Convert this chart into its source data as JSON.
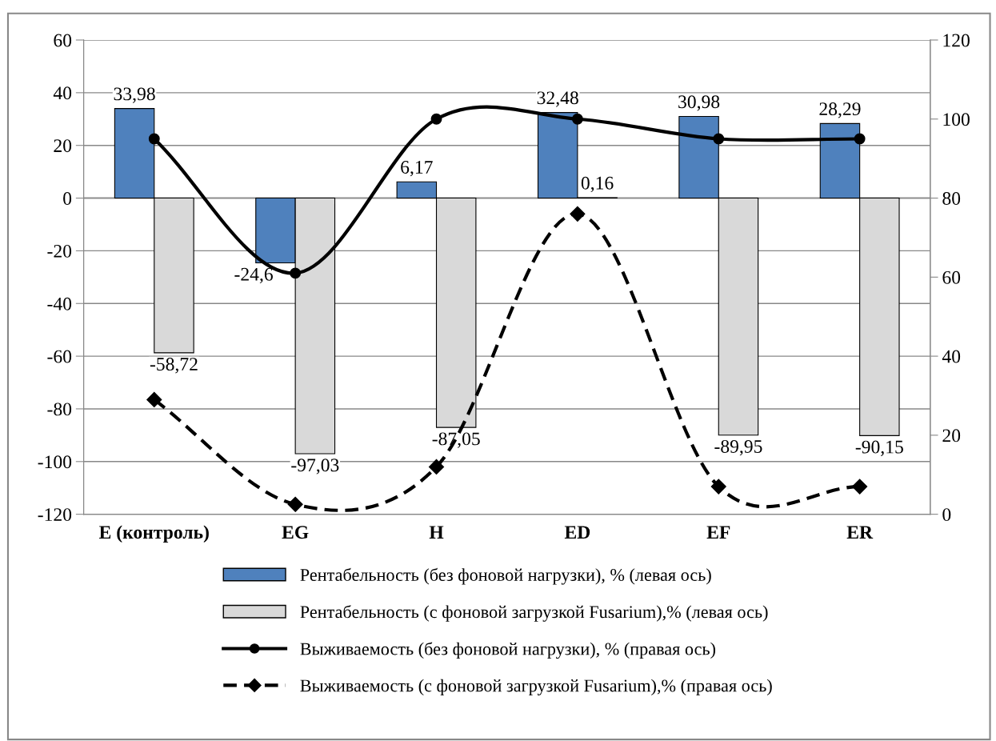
{
  "chart_data": {
    "type": "bar",
    "categories": [
      "E (контроль)",
      "EG",
      "H",
      "ED",
      "EF",
      "ER"
    ],
    "series": [
      {
        "name": "Рентабельность (без фоновой нагрузки), % (левая ось)",
        "color": "#4f81bd",
        "values": [
          33.98,
          -24.6,
          6.17,
          32.48,
          30.98,
          28.29
        ],
        "value_labels": [
          "33,98",
          "-24,6",
          "6,17",
          "32,48",
          "30,98",
          "28,29"
        ]
      },
      {
        "name": "Рентабельность (с фоновой загрузкой Fusarium),% (левая ось)",
        "color": "#d9d9d9",
        "values": [
          -58.72,
          -97.03,
          -87.05,
          0.16,
          -89.95,
          -90.15
        ],
        "value_labels": [
          "-58,72",
          "-97,03",
          "-87,05",
          "0,16",
          "-89,95",
          "-90,15"
        ]
      },
      {
        "name": "Выживаемость (без фоновой нагрузки), % (правая ось)",
        "type": "line",
        "axis": "y2",
        "color": "#000000",
        "marker": "circle",
        "line_style": "solid",
        "values": [
          95,
          61,
          100,
          100,
          95,
          95
        ]
      },
      {
        "name": "Выживаемость (с фоновой загрузкой Fusarium),% (правая ось)",
        "type": "line",
        "axis": "y2",
        "color": "#000000",
        "marker": "diamond",
        "line_style": "dashed",
        "values": [
          29,
          2.5,
          12,
          76,
          7,
          7
        ]
      }
    ],
    "ylim": [
      -120,
      60
    ],
    "yticks": [
      -120,
      -100,
      -80,
      -60,
      -40,
      -20,
      0,
      20,
      40,
      60
    ],
    "y2lim": [
      0,
      120
    ],
    "y2ticks": [
      0,
      20,
      40,
      60,
      80,
      100,
      120
    ],
    "grid": "y",
    "legend": "bottom"
  }
}
